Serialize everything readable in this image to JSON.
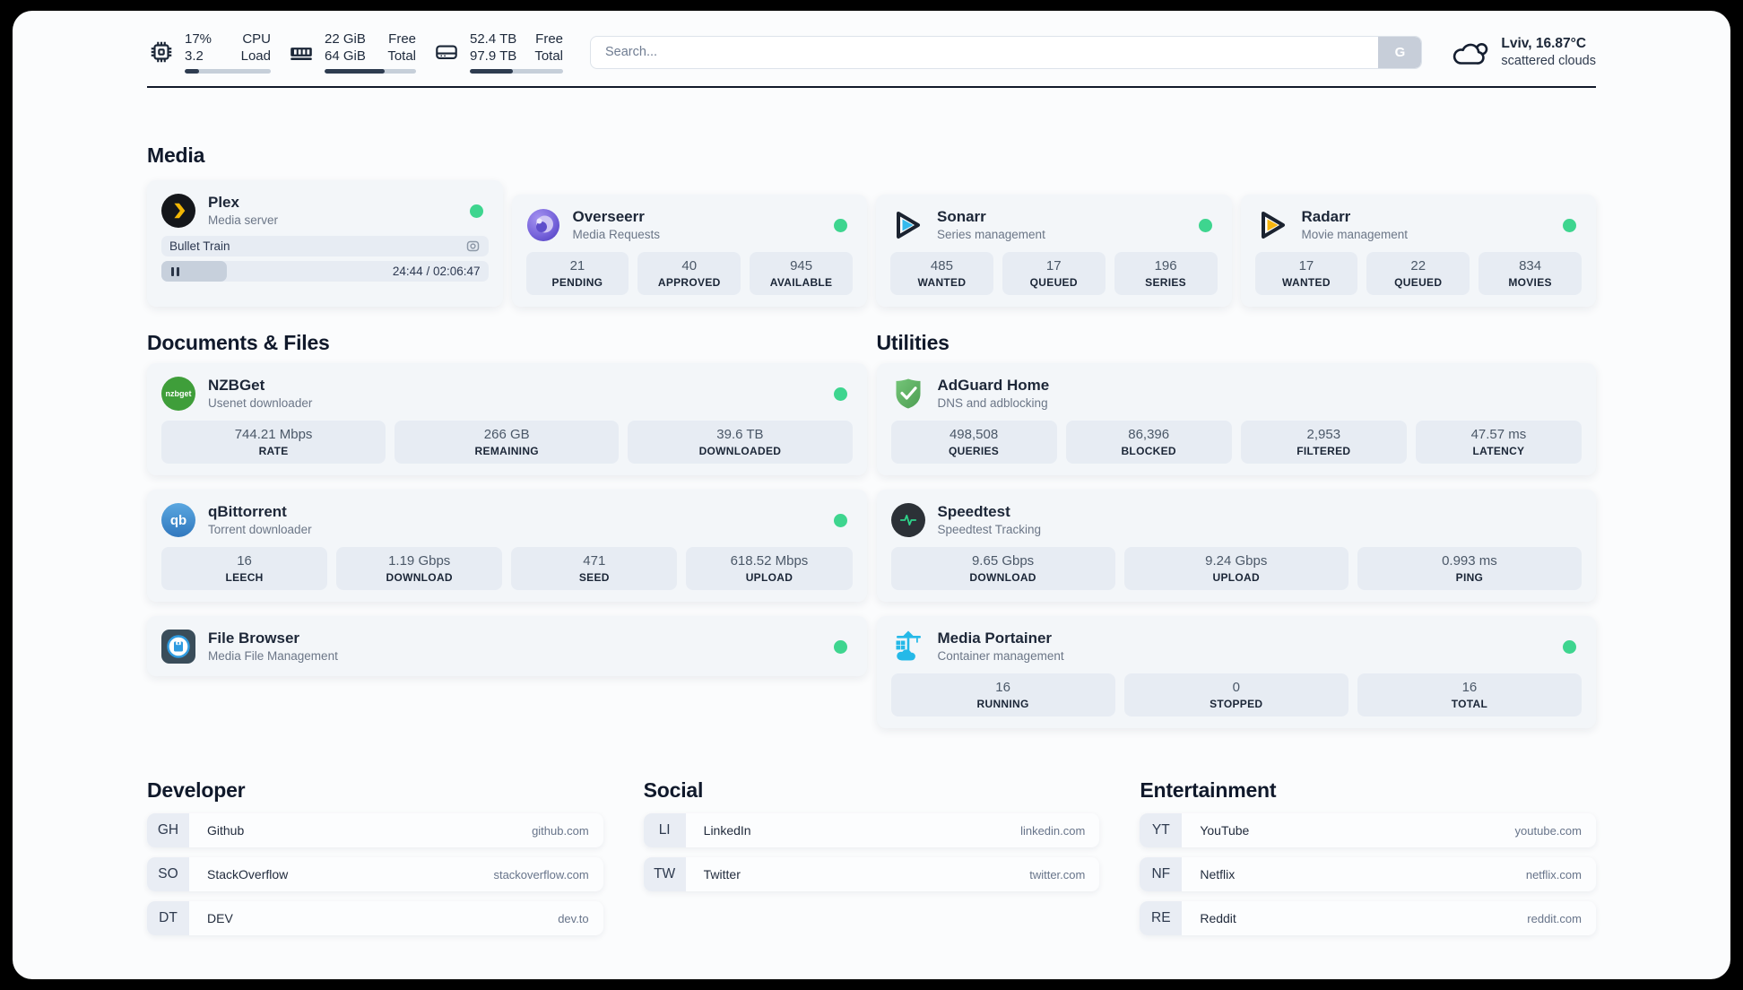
{
  "topbar": {
    "cpu": {
      "values": [
        "17%",
        "3.2"
      ],
      "labels": [
        "CPU",
        "Load"
      ],
      "percent": 17
    },
    "memory": {
      "values": [
        "22 GiB",
        "64 GiB"
      ],
      "labels": [
        "Free",
        "Total"
      ],
      "percent": 66
    },
    "disk": {
      "values": [
        "52.4 TB",
        "97.9 TB"
      ],
      "labels": [
        "Free",
        "Total"
      ],
      "percent": 46
    },
    "search": {
      "placeholder": "Search...",
      "button_label": "G"
    },
    "weather": {
      "title": "Lviv, 16.87°C",
      "condition": "scattered clouds"
    }
  },
  "media": {
    "heading": "Media",
    "plex": {
      "name": "Plex",
      "description": "Media server",
      "now_playing": "Bullet Train",
      "time": "24:44 / 02:06:47",
      "progress_percent": 20
    },
    "overseerr": {
      "name": "Overseerr",
      "description": "Media Requests",
      "stats": [
        {
          "value": "21",
          "label": "PENDING"
        },
        {
          "value": "40",
          "label": "APPROVED"
        },
        {
          "value": "945",
          "label": "AVAILABLE"
        }
      ]
    },
    "sonarr": {
      "name": "Sonarr",
      "description": "Series management",
      "stats": [
        {
          "value": "485",
          "label": "WANTED"
        },
        {
          "value": "17",
          "label": "QUEUED"
        },
        {
          "value": "196",
          "label": "SERIES"
        }
      ]
    },
    "radarr": {
      "name": "Radarr",
      "description": "Movie management",
      "stats": [
        {
          "value": "17",
          "label": "WANTED"
        },
        {
          "value": "22",
          "label": "QUEUED"
        },
        {
          "value": "834",
          "label": "MOVIES"
        }
      ]
    }
  },
  "documents": {
    "heading": "Documents & Files",
    "nzbget": {
      "name": "NZBGet",
      "description": "Usenet downloader",
      "stats": [
        {
          "value": "744.21 Mbps",
          "label": "RATE"
        },
        {
          "value": "266 GB",
          "label": "REMAINING"
        },
        {
          "value": "39.6 TB",
          "label": "DOWNLOADED"
        }
      ]
    },
    "qbittorrent": {
      "name": "qBittorrent",
      "description": "Torrent downloader",
      "stats": [
        {
          "value": "16",
          "label": "LEECH"
        },
        {
          "value": "1.19 Gbps",
          "label": "DOWNLOAD"
        },
        {
          "value": "471",
          "label": "SEED"
        },
        {
          "value": "618.52 Mbps",
          "label": "UPLOAD"
        }
      ]
    },
    "filebrowser": {
      "name": "File Browser",
      "description": "Media File Management"
    }
  },
  "utilities": {
    "heading": "Utilities",
    "adguard": {
      "name": "AdGuard Home",
      "description": "DNS and adblocking",
      "stats": [
        {
          "value": "498,508",
          "label": "QUERIES"
        },
        {
          "value": "86,396",
          "label": "BLOCKED"
        },
        {
          "value": "2,953",
          "label": "FILTERED"
        },
        {
          "value": "47.57 ms",
          "label": "LATENCY"
        }
      ]
    },
    "speedtest": {
      "name": "Speedtest",
      "description": "Speedtest Tracking",
      "stats": [
        {
          "value": "9.65 Gbps",
          "label": "DOWNLOAD"
        },
        {
          "value": "9.24 Gbps",
          "label": "UPLOAD"
        },
        {
          "value": "0.993 ms",
          "label": "PING"
        }
      ]
    },
    "portainer": {
      "name": "Media Portainer",
      "description": "Container management",
      "stats": [
        {
          "value": "16",
          "label": "RUNNING"
        },
        {
          "value": "0",
          "label": "STOPPED"
        },
        {
          "value": "16",
          "label": "TOTAL"
        }
      ]
    }
  },
  "bookmarks": {
    "developer": {
      "heading": "Developer",
      "items": [
        {
          "abbr": "GH",
          "name": "Github",
          "url": "github.com"
        },
        {
          "abbr": "SO",
          "name": "StackOverflow",
          "url": "stackoverflow.com"
        },
        {
          "abbr": "DT",
          "name": "DEV",
          "url": "dev.to"
        }
      ]
    },
    "social": {
      "heading": "Social",
      "items": [
        {
          "abbr": "LI",
          "name": "LinkedIn",
          "url": "linkedin.com"
        },
        {
          "abbr": "TW",
          "name": "Twitter",
          "url": "twitter.com"
        }
      ]
    },
    "entertainment": {
      "heading": "Entertainment",
      "items": [
        {
          "abbr": "YT",
          "name": "YouTube",
          "url": "youtube.com"
        },
        {
          "abbr": "NF",
          "name": "Netflix",
          "url": "netflix.com"
        },
        {
          "abbr": "RE",
          "name": "Reddit",
          "url": "reddit.com"
        }
      ]
    }
  },
  "nzbget_icon_text": "nzbget",
  "qb_icon_text": "qb",
  "colors": {
    "status_green": "#3ed58f",
    "accent_bar": "#2e3c50"
  }
}
